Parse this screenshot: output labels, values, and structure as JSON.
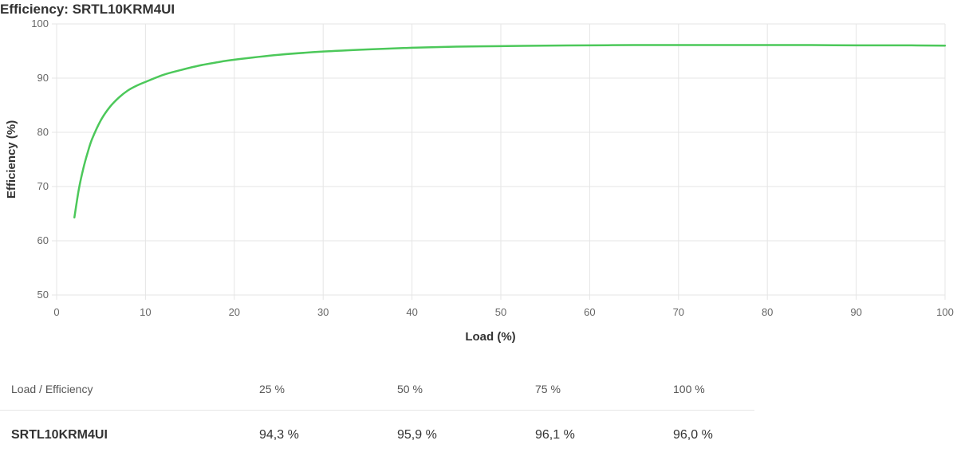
{
  "title": "Efficiency: SRTL10KRM4UI",
  "chart_data": {
    "type": "line",
    "title": "Efficiency: SRTL10KRM4UI",
    "xlabel": "Load (%)",
    "ylabel": "Efficiency (%)",
    "xlim": [
      0,
      100
    ],
    "ylim": [
      50,
      100
    ],
    "xticks": [
      0,
      10,
      20,
      30,
      40,
      50,
      60,
      70,
      80,
      90,
      100
    ],
    "yticks": [
      50,
      60,
      70,
      80,
      90,
      100
    ],
    "grid": true,
    "line_color": "#4cc85a",
    "series": [
      {
        "x": [
          2,
          2.5,
          3,
          3.5,
          4,
          5,
          6,
          7,
          8,
          9,
          10,
          12,
          14,
          16,
          18,
          20,
          25,
          30,
          35,
          40,
          45,
          50,
          55,
          60,
          65,
          70,
          75,
          80,
          85,
          90,
          95,
          100
        ],
        "values": [
          64.3,
          69.5,
          73.3,
          76.3,
          78.8,
          82.3,
          84.7,
          86.4,
          87.7,
          88.6,
          89.3,
          90.6,
          91.5,
          92.3,
          92.9,
          93.4,
          94.3,
          94.9,
          95.3,
          95.6,
          95.8,
          95.9,
          96.0,
          96.05,
          96.1,
          96.1,
          96.1,
          96.1,
          96.1,
          96.05,
          96.05,
          96.0
        ]
      }
    ]
  },
  "table": {
    "header": [
      "Load / Efficiency",
      "25 %",
      "50 %",
      "75 %",
      "100 %"
    ],
    "rows": [
      [
        "SRTL10KRM4UI",
        "94,3 %",
        "95,9 %",
        "96,1 %",
        "96,0 %"
      ]
    ]
  }
}
